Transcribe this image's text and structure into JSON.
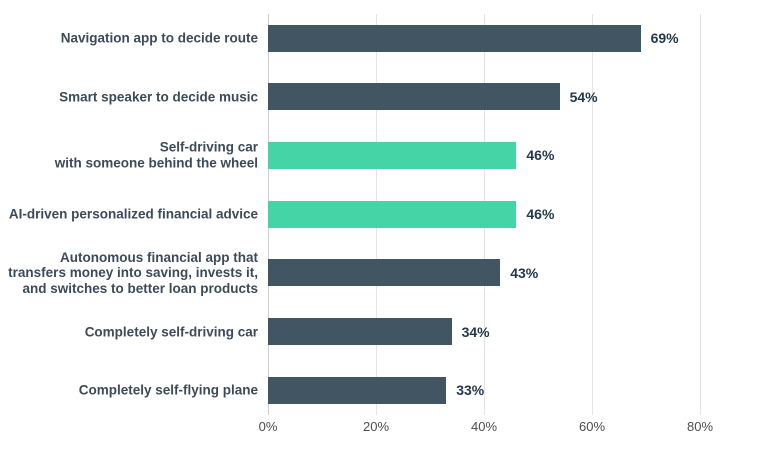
{
  "chart_data": {
    "type": "bar",
    "orientation": "horizontal",
    "title": "",
    "categories": [
      "Navigation app to decide route",
      "Smart speaker to decide music",
      "Self-driving car\nwith someone behind the wheel",
      "AI-driven personalized financial advice",
      "Autonomous financial app that\ntransfers money into saving, invests it,\nand switches to better loan products",
      "Completely self-driving car",
      "Completely self-flying plane"
    ],
    "values": [
      69,
      54,
      46,
      46,
      43,
      34,
      33
    ],
    "value_labels": [
      "69%",
      "54%",
      "46%",
      "46%",
      "43%",
      "34%",
      "33%"
    ],
    "bar_colors": [
      "#425563",
      "#425563",
      "#44d4a5",
      "#44d4a5",
      "#425563",
      "#425563",
      "#425563"
    ],
    "colors": {
      "dark_bar": "#425563",
      "accent_bar": "#44d4a5",
      "value_label": "#24384c",
      "category_label": "#3d4a59",
      "tick_label": "#4d4d4d",
      "gridline": "#e4e4e4",
      "axis_line": "#cfcfcf"
    },
    "x_ticks": [
      0,
      20,
      40,
      60,
      80
    ],
    "x_tick_labels": [
      "0%",
      "20%",
      "40%",
      "60%",
      "80%"
    ],
    "xlim": [
      0,
      80
    ],
    "grid": "vertical-only",
    "legend": "none"
  }
}
